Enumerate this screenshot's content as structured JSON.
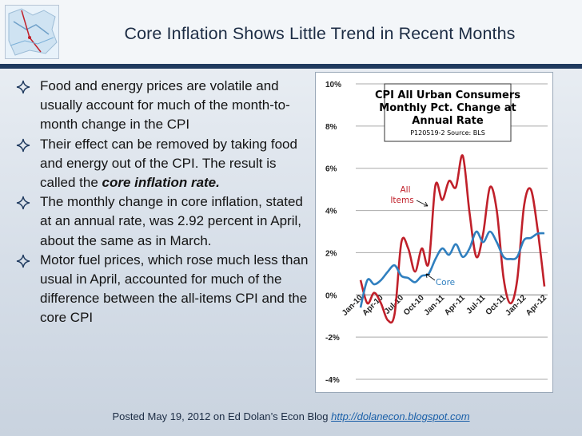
{
  "slide": {
    "title": "Core Inflation Shows Little Trend in Recent Months",
    "bullets": [
      {
        "text": "Food and energy prices are volatile and usually account for much of the month-to-month change in the CPI"
      },
      {
        "text_before": "Their effect can be removed by taking food and energy out of the CPI. The result is called the ",
        "emphasis": "core inflation rate."
      },
      {
        "text": "The monthly change in core inflation, stated at an annual rate, was 2.92 percent in April, about the same as in March."
      },
      {
        "text": "Motor fuel prices, which rose much less than usual in April, accounted for much of the difference between the all-items CPI and the core CPI"
      }
    ],
    "footer": {
      "text": "Posted May 19, 2012 on Ed Dolan’s Econ Blog ",
      "link": "http://dolanecon.blogspot.com"
    },
    "bullet_icon": "diamond-star-icon",
    "logo_icon": "map-logo-icon",
    "colors": {
      "title": "#1c2c44",
      "rule": "#1f3a5f",
      "link": "#1a5fa8"
    }
  },
  "chart_data": {
    "type": "line",
    "title": [
      "CPI All Urban Consumers",
      "Monthly Pct. Change at",
      "Annual Rate"
    ],
    "subtitle": "P120519-2 Source: BLS",
    "ylim": [
      -4,
      10
    ],
    "yticks": [
      -4,
      -2,
      0,
      2,
      4,
      6,
      8,
      10
    ],
    "ytick_labels": [
      "-4%",
      "-2%",
      "0%",
      "2%",
      "4%",
      "6%",
      "8%",
      "10%"
    ],
    "grid": true,
    "x": [
      "Jan-10",
      "Feb-10",
      "Mar-10",
      "Apr-10",
      "May-10",
      "Jun-10",
      "Jul-10",
      "Aug-10",
      "Sep-10",
      "Oct-10",
      "Nov-10",
      "Dec-10",
      "Jan-11",
      "Feb-11",
      "Mar-11",
      "Apr-11",
      "May-11",
      "Jun-11",
      "Jul-11",
      "Aug-11",
      "Sep-11",
      "Oct-11",
      "Nov-11",
      "Dec-11",
      "Jan-12",
      "Feb-12",
      "Mar-12",
      "Apr-12"
    ],
    "xtick_labels": [
      "Jan-10",
      "Apr-10",
      "Jul-10",
      "Oct-10",
      "Jan-11",
      "Apr-11",
      "Jul-11",
      "Oct-11",
      "Jan-12",
      "Apr-12"
    ],
    "series": [
      {
        "name": "All Items",
        "color": "#c0202a",
        "values": [
          0.7,
          -0.4,
          0.1,
          -0.4,
          -1.2,
          -0.9,
          2.5,
          2.2,
          1.1,
          2.2,
          1.5,
          5.2,
          4.5,
          5.4,
          5.1,
          6.6,
          3.9,
          1.8,
          2.9,
          5.1,
          4.0,
          0.8,
          -0.4,
          0.7,
          4.2,
          5.0,
          3.1,
          0.4
        ]
      },
      {
        "name": "Core",
        "color": "#2f7fbf",
        "values": [
          -0.6,
          0.7,
          0.5,
          0.7,
          1.1,
          1.4,
          0.9,
          0.8,
          0.6,
          0.9,
          1.0,
          1.7,
          2.2,
          1.9,
          2.4,
          1.8,
          2.2,
          3.0,
          2.5,
          3.0,
          2.5,
          1.8,
          1.7,
          1.8,
          2.6,
          2.7,
          2.9,
          2.92
        ]
      }
    ]
  }
}
